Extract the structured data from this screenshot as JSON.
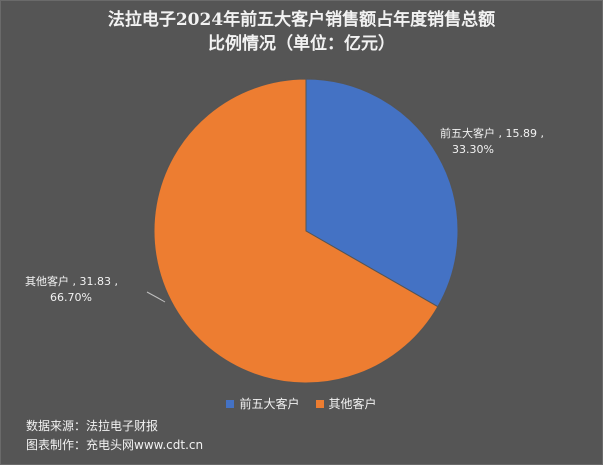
{
  "chart_data": {
    "type": "pie",
    "title_lines": [
      "法拉电子2024年前五大客户销售额占年度销售总额",
      "比例情况（单位：亿元）"
    ],
    "slices": [
      {
        "label": "前五大客户",
        "value": 15.89,
        "percent_label": "33.30%",
        "value_label": "15.89",
        "color": "#4472C4"
      },
      {
        "label": "其他客户",
        "value": 31.83,
        "percent_label": "66.70%",
        "value_label": "31.83",
        "color": "#ED7D31"
      }
    ],
    "legend": [
      "前五大客户",
      "其他客户"
    ],
    "legend_position": "bottom",
    "start_angle": "12 o'clock, clockwise"
  },
  "labels": {
    "top5": {
      "line1": "前五大客户 , 15.89 ,",
      "line2": "33.30%"
    },
    "others": {
      "line1": "其他客户 , 31.83 ,",
      "line2": "66.70%"
    }
  },
  "footer": {
    "source": "数据来源：法拉电子财报",
    "made_by": "图表制作：充电头网www.cdt.cn"
  },
  "colors": {
    "background": "#555555",
    "text": "#f2f2f2"
  }
}
